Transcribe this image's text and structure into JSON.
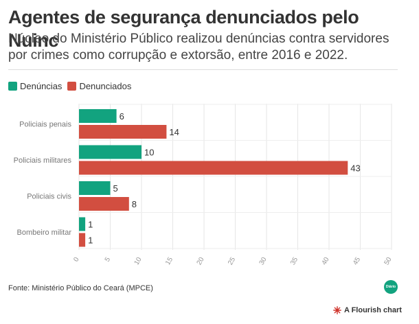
{
  "header": {
    "title": "Agentes de segurança denunciados pelo Nuinc",
    "subtitle": "Núcleo do Ministério Público realizou denúncias contra servidores por crimes como corrupção e extorsão, entre 2016 e 2022."
  },
  "legend": [
    {
      "label": "Denúncias",
      "color": "#12a37f"
    },
    {
      "label": "Denunciados",
      "color": "#d24e40"
    }
  ],
  "footer": {
    "source": "Fonte: Ministério Público do Ceará (MPCE)",
    "logo_text": "Diário",
    "credit": "A Flourish chart"
  },
  "chart_data": {
    "type": "bar",
    "orientation": "horizontal",
    "categories": [
      "Policiais penais",
      "Policiais militares",
      "Policiais civis",
      "Bombeiro militar"
    ],
    "series": [
      {
        "name": "Denúncias",
        "color": "#12a37f",
        "values": [
          6,
          10,
          5,
          1
        ]
      },
      {
        "name": "Denunciados",
        "color": "#d24e40",
        "values": [
          14,
          43,
          8,
          1
        ]
      }
    ],
    "xlim": [
      0,
      50
    ],
    "xticks": [
      0,
      5,
      10,
      15,
      20,
      25,
      30,
      35,
      40,
      45,
      50
    ],
    "grid": true,
    "legend_position": "top-left"
  }
}
